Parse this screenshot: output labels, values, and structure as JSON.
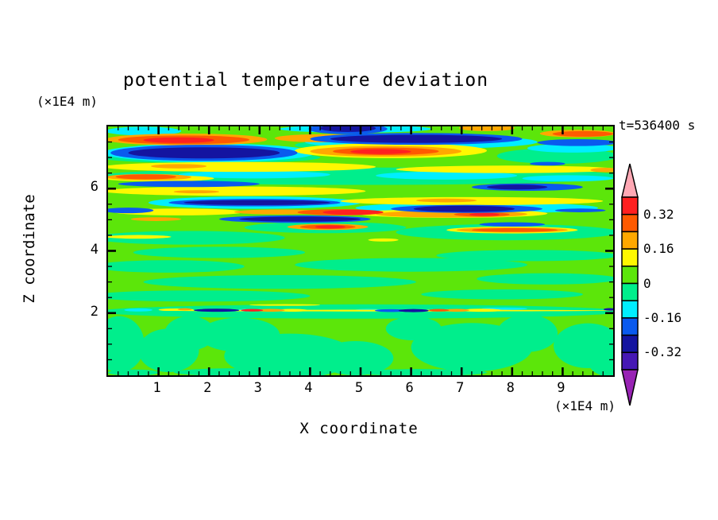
{
  "title": "potential temperature deviation",
  "timestamp": "t=536400 s",
  "axes": {
    "x": {
      "label": "X coordinate",
      "unit": "(×1E4 m)",
      "range": [
        0,
        10
      ],
      "major_ticks": [
        1,
        2,
        3,
        4,
        5,
        6,
        7,
        8,
        9
      ],
      "minor_step": 0.2
    },
    "z": {
      "label": "Z coordinate",
      "unit": "(×1E4 m)",
      "range": [
        0,
        8
      ],
      "major_ticks": [
        2,
        4,
        6
      ],
      "minor_step": 0.5
    }
  },
  "colorbar": {
    "over_color": "#FFA8B4",
    "under_color": "#9823B4",
    "segments": [
      "#FF2020",
      "#FF5A00",
      "#FFA800",
      "#FFF800",
      "#5CE60A",
      "#00EE8C",
      "#00EEFF",
      "#0A5AEE",
      "#1414A0",
      "#4618B4"
    ],
    "labels": [
      {
        "text": "0.32",
        "boundary": 1
      },
      {
        "text": "0.16",
        "boundary": 3
      },
      {
        "text": "0",
        "boundary": 5
      },
      {
        "text": "-0.16",
        "boundary": 7
      },
      {
        "text": "-0.32",
        "boundary": 9
      }
    ]
  },
  "chart_data": {
    "type": "heatmap",
    "title": "potential temperature deviation",
    "xlabel": "X coordinate (×1E4 m)",
    "ylabel": "Z coordinate (×1E4 m)",
    "time": "t=536400 s",
    "x_range": [
      0,
      10
    ],
    "z_range": [
      0,
      8
    ],
    "contour_interval": 0.08,
    "contour_levels": [
      -0.4,
      -0.32,
      -0.24,
      -0.16,
      -0.08,
      0,
      0.08,
      0.16,
      0.24,
      0.32,
      0.4
    ],
    "palette": {
      "r": "#FF2020",
      "o2": "#FF5A00",
      "o": "#FFA800",
      "y": "#FFF800",
      "g": "#5CE60A",
      "sg": "#00EE8C",
      "c": "#00EEFF",
      "b": "#0A5AEE",
      "n": "#1414A0",
      "i": "#4618B4",
      "p": "#FFA8B4",
      "pu": "#9823B4"
    },
    "background_level": "g",
    "field_blobs": [
      [
        0.22,
        1.0,
        0.5,
        0.9,
        "sg"
      ],
      [
        1.2,
        0.8,
        0.6,
        0.7,
        "sg"
      ],
      [
        1.62,
        1.35,
        0.5,
        0.55,
        "sg"
      ],
      [
        2.6,
        1.3,
        0.8,
        0.55,
        "sg"
      ],
      [
        3.6,
        0.62,
        1.3,
        0.72,
        "sg"
      ],
      [
        4.9,
        0.55,
        0.75,
        0.55,
        "sg"
      ],
      [
        6.05,
        1.5,
        0.55,
        0.38,
        "sg"
      ],
      [
        7.2,
        0.9,
        1.2,
        0.78,
        "sg"
      ],
      [
        8.3,
        1.35,
        0.6,
        0.6,
        "sg"
      ],
      [
        9.5,
        0.95,
        0.68,
        0.72,
        "sg"
      ],
      [
        9.97,
        0.4,
        0.45,
        0.45,
        "sg"
      ],
      [
        2.7,
        0.1,
        1.4,
        0.13,
        "sg"
      ],
      [
        6.2,
        0.09,
        1.3,
        0.11,
        "sg"
      ],
      [
        0.5,
        0.09,
        0.5,
        0.1,
        "sg"
      ],
      [
        5.0,
        2.05,
        5.2,
        0.23,
        "sg"
      ],
      [
        1.8,
        2.55,
        2.2,
        0.18,
        "sg"
      ],
      [
        7.8,
        2.6,
        1.6,
        0.16,
        "sg"
      ],
      [
        3.4,
        3.0,
        2.7,
        0.22,
        "sg"
      ],
      [
        8.7,
        3.1,
        1.4,
        0.18,
        "sg"
      ],
      [
        1.2,
        3.5,
        1.5,
        0.2,
        "sg"
      ],
      [
        6.0,
        3.55,
        2.3,
        0.22,
        "sg"
      ],
      [
        2.2,
        3.95,
        1.7,
        0.18,
        "sg"
      ],
      [
        8.3,
        3.85,
        1.8,
        0.18,
        "sg"
      ],
      [
        1.6,
        4.42,
        1.9,
        0.22,
        "sg"
      ],
      [
        7.9,
        4.6,
        2.2,
        0.26,
        "sg"
      ],
      [
        4.3,
        4.75,
        1.6,
        0.18,
        "sg"
      ],
      [
        5.0,
        6.4,
        5.2,
        0.28,
        "sg"
      ],
      [
        2.0,
        7.0,
        2.2,
        0.18,
        "sg"
      ],
      [
        8.9,
        7.05,
        1.2,
        0.25,
        "sg"
      ],
      [
        5.2,
        7.4,
        1.5,
        0.18,
        "sg"
      ],
      [
        0.7,
        7.85,
        0.75,
        0.14,
        "c"
      ],
      [
        4.9,
        7.92,
        1.5,
        0.12,
        "c"
      ],
      [
        2.0,
        7.15,
        2.1,
        0.3,
        "c"
      ],
      [
        6.2,
        7.5,
        2.3,
        0.22,
        "c"
      ],
      [
        9.2,
        7.3,
        0.9,
        0.14,
        "c"
      ],
      [
        2.9,
        6.45,
        1.5,
        0.12,
        "c"
      ],
      [
        6.7,
        6.42,
        1.4,
        0.13,
        "c"
      ],
      [
        9.1,
        6.33,
        0.9,
        0.1,
        "c"
      ],
      [
        2.9,
        5.55,
        2.1,
        0.2,
        "c"
      ],
      [
        7.3,
        5.38,
        2.4,
        0.18,
        "c"
      ],
      [
        0.6,
        2.1,
        0.28,
        0.05,
        "c"
      ],
      [
        2.72,
        2.09,
        0.18,
        0.04,
        "c"
      ],
      [
        5.15,
        2.09,
        0.28,
        0.045,
        "c"
      ],
      [
        7.85,
        2.14,
        0.45,
        0.04,
        "c"
      ],
      [
        2.6,
        6.7,
        2.7,
        0.16,
        "y"
      ],
      [
        7.9,
        6.62,
        2.2,
        0.12,
        "y"
      ],
      [
        5.6,
        7.22,
        1.9,
        0.24,
        "y"
      ],
      [
        1.0,
        6.33,
        1.1,
        0.1,
        "y"
      ],
      [
        2.5,
        5.92,
        2.6,
        0.15,
        "y"
      ],
      [
        7.2,
        5.6,
        2.6,
        0.13,
        "y"
      ],
      [
        1.4,
        5.25,
        1.3,
        0.11,
        "y"
      ],
      [
        6.8,
        5.2,
        1.9,
        0.14,
        "y"
      ],
      [
        0.6,
        4.45,
        0.65,
        0.06,
        "y"
      ],
      [
        5.45,
        4.35,
        0.3,
        0.05,
        "y"
      ],
      [
        8.0,
        4.67,
        1.3,
        0.11,
        "y"
      ],
      [
        5.5,
        2.08,
        4.5,
        0.028,
        "y"
      ],
      [
        1.35,
        2.11,
        0.35,
        0.04,
        "y"
      ],
      [
        3.65,
        2.09,
        0.3,
        0.045,
        "y"
      ],
      [
        7.4,
        2.09,
        0.4,
        0.05,
        "y"
      ],
      [
        3.5,
        2.26,
        0.7,
        0.028,
        "y"
      ],
      [
        1.55,
        7.58,
        1.6,
        0.19,
        "o"
      ],
      [
        4.3,
        7.62,
        1.0,
        0.13,
        "o"
      ],
      [
        7.5,
        7.95,
        0.55,
        0.1,
        "o"
      ],
      [
        9.3,
        7.77,
        0.75,
        0.12,
        "o"
      ],
      [
        5.5,
        7.2,
        1.5,
        0.17,
        "o"
      ],
      [
        1.4,
        6.72,
        0.55,
        0.07,
        "o"
      ],
      [
        9.85,
        6.6,
        0.3,
        0.07,
        "o"
      ],
      [
        0.8,
        6.37,
        0.85,
        0.1,
        "o"
      ],
      [
        6.7,
        5.62,
        0.6,
        0.06,
        "o"
      ],
      [
        1.75,
        5.9,
        0.45,
        0.05,
        "o"
      ],
      [
        3.4,
        5.25,
        0.9,
        0.08,
        "o"
      ],
      [
        6.8,
        5.18,
        1.5,
        0.11,
        "o"
      ],
      [
        0.95,
        5.02,
        0.5,
        0.06,
        "o"
      ],
      [
        4.35,
        4.77,
        0.8,
        0.1,
        "o"
      ],
      [
        8.0,
        4.67,
        1.1,
        0.08,
        "o"
      ],
      [
        3.22,
        2.09,
        0.28,
        0.045,
        "o"
      ],
      [
        6.9,
        2.09,
        0.25,
        0.045,
        "o"
      ],
      [
        1.52,
        2.12,
        0.14,
        0.035,
        "o"
      ],
      [
        1.5,
        7.57,
        1.3,
        0.14,
        "o2"
      ],
      [
        9.4,
        7.76,
        0.6,
        0.09,
        "o2"
      ],
      [
        5.5,
        7.2,
        1.05,
        0.12,
        "o2"
      ],
      [
        0.75,
        6.38,
        0.6,
        0.08,
        "o2"
      ],
      [
        4.6,
        5.24,
        0.85,
        0.1,
        "o2"
      ],
      [
        7.4,
        5.17,
        0.55,
        0.07,
        "o2"
      ],
      [
        4.35,
        4.77,
        0.55,
        0.07,
        "o2"
      ],
      [
        8.05,
        4.67,
        0.85,
        0.06,
        "o2"
      ],
      [
        6.55,
        2.09,
        0.2,
        0.04,
        "o2"
      ],
      [
        1.4,
        7.56,
        0.7,
        0.09,
        "r"
      ],
      [
        5.4,
        7.19,
        0.6,
        0.08,
        "r"
      ],
      [
        4.85,
        5.24,
        0.6,
        0.08,
        "r"
      ],
      [
        7.45,
        5.17,
        0.3,
        0.05,
        "r"
      ],
      [
        2.85,
        2.09,
        0.22,
        0.04,
        "r"
      ],
      [
        4.4,
        4.77,
        0.3,
        0.05,
        "r"
      ],
      [
        4.75,
        7.92,
        0.78,
        0.17,
        "b"
      ],
      [
        6.1,
        7.6,
        2.1,
        0.19,
        "b"
      ],
      [
        9.3,
        7.48,
        0.8,
        0.11,
        "b"
      ],
      [
        1.9,
        7.15,
        1.85,
        0.26,
        "b"
      ],
      [
        8.7,
        6.8,
        0.35,
        0.06,
        "b"
      ],
      [
        1.6,
        6.15,
        1.4,
        0.1,
        "b"
      ],
      [
        8.3,
        6.05,
        1.1,
        0.12,
        "b"
      ],
      [
        2.9,
        5.55,
        1.7,
        0.12,
        "b"
      ],
      [
        7.1,
        5.35,
        1.5,
        0.13,
        "b"
      ],
      [
        9.35,
        5.3,
        0.5,
        0.06,
        "b"
      ],
      [
        0.4,
        5.3,
        0.5,
        0.09,
        "b"
      ],
      [
        3.7,
        5.02,
        1.5,
        0.12,
        "b"
      ],
      [
        8.0,
        4.85,
        0.65,
        0.07,
        "b"
      ],
      [
        5.6,
        2.08,
        0.32,
        0.045,
        "b"
      ],
      [
        4.75,
        7.94,
        0.55,
        0.12,
        "n"
      ],
      [
        6.1,
        7.6,
        1.7,
        0.13,
        "n"
      ],
      [
        1.9,
        7.15,
        1.5,
        0.18,
        "n"
      ],
      [
        8.1,
        6.05,
        0.6,
        0.08,
        "n"
      ],
      [
        2.95,
        5.55,
        1.45,
        0.08,
        "n"
      ],
      [
        7.05,
        5.35,
        1.0,
        0.1,
        "n"
      ],
      [
        3.8,
        5.02,
        1.2,
        0.08,
        "n"
      ],
      [
        2.15,
        2.09,
        0.45,
        0.05,
        "n"
      ],
      [
        6.05,
        2.08,
        0.3,
        0.05,
        "n"
      ],
      [
        9.93,
        2.12,
        0.12,
        0.04,
        "n"
      ]
    ]
  }
}
